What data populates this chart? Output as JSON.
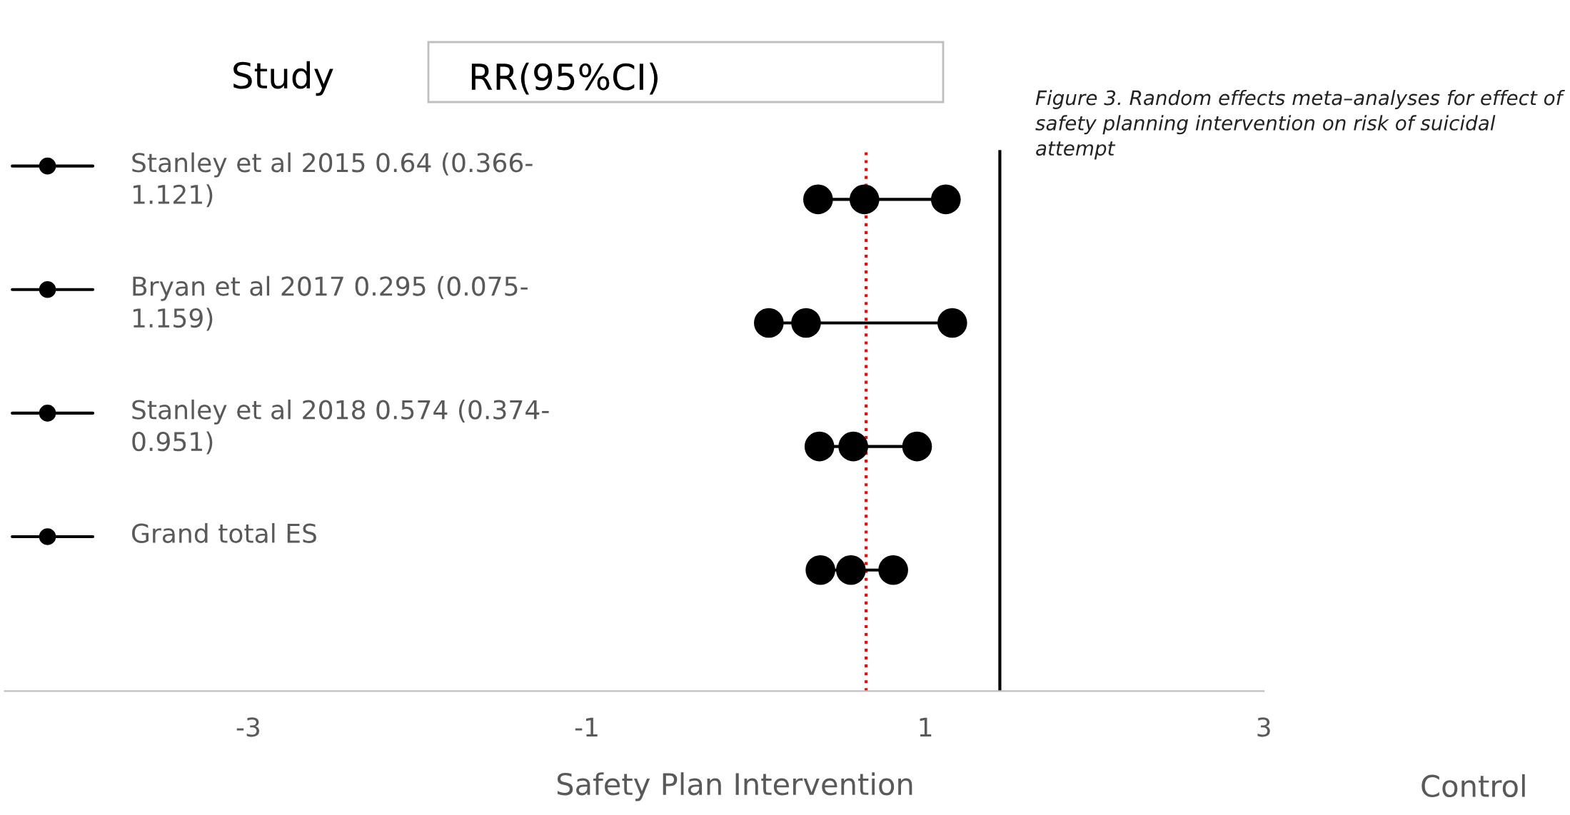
{
  "chart_data": {
    "type": "scatter",
    "orientation": "horizontal",
    "categories": [
      "Stanley et al 2015 0.64 (0.366-1.121)",
      "Bryan et al 2017 0.295 (0.075-1.159)",
      "Stanley et al 2018 0.574 (0.374-0.951)",
      "Grand total ES"
    ],
    "series": [
      {
        "color": "#000000",
        "values": [
          0.366,
          0.075,
          0.374,
          0.38
        ]
      },
      {
        "color": "#000000",
        "values": [
          0.64,
          0.295,
          0.574,
          0.56
        ]
      },
      {
        "color": "#000000",
        "values": [
          1.121,
          1.159,
          0.951,
          0.81
        ]
      }
    ],
    "marker": "circle",
    "xlabel": "Safety Plan Intervention",
    "xlim": [
      -4.44,
      3
    ],
    "xticks": [
      -3,
      -1,
      1,
      3
    ],
    "ref_lines": [
      {
        "axis": "x",
        "value": 0.65,
        "color": "#ff0000",
        "line_style": "dotted"
      },
      {
        "axis": "x",
        "value": 1.44,
        "color": "#000000",
        "line_style": "solid"
      }
    ],
    "annotations": [
      "Study",
      "RR(95%CI)",
      "Figure 3. Random effects meta–analyses for effect of safety planning intervention on risk of suicidal attempt",
      "Control"
    ],
    "grid": false
  }
}
